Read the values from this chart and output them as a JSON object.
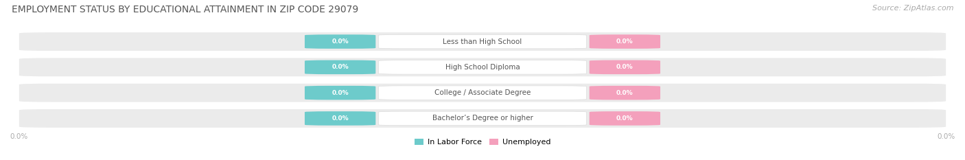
{
  "title": "EMPLOYMENT STATUS BY EDUCATIONAL ATTAINMENT IN ZIP CODE 29079",
  "source": "Source: ZipAtlas.com",
  "categories": [
    "Less than High School",
    "High School Diploma",
    "College / Associate Degree",
    "Bachelor’s Degree or higher"
  ],
  "in_labor_force": [
    0.0,
    0.0,
    0.0,
    0.0
  ],
  "unemployed": [
    0.0,
    0.0,
    0.0,
    0.0
  ],
  "labor_force_color": "#6dcbcb",
  "unemployed_color": "#f4a0bc",
  "title_fontsize": 10,
  "source_fontsize": 8,
  "legend_label_labor": "In Labor Force",
  "legend_label_unemployed": "Unemployed",
  "background_color": "#ffffff",
  "row_bg_color": "#ebebeb",
  "value_label_color": "#ffffff",
  "cat_label_color": "#555555",
  "axis_label_color": "#aaaaaa",
  "axis_label_left": "0.0%",
  "axis_label_right": "0.0%"
}
